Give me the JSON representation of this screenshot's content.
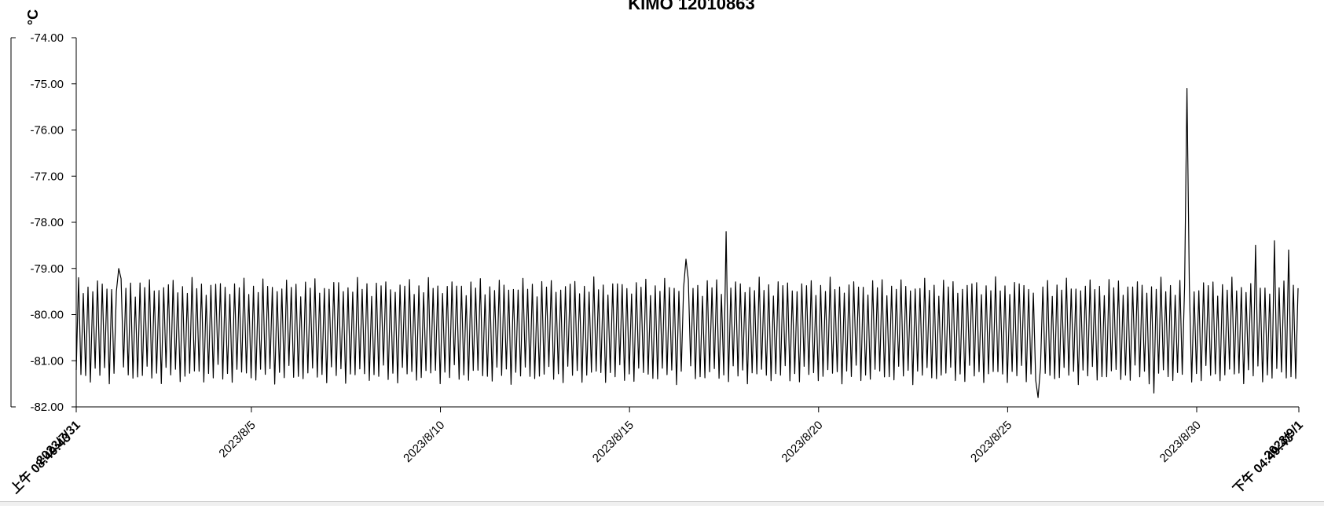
{
  "chart_data": {
    "type": "line",
    "title": "KIMO 12010863",
    "ylabel": "°C",
    "xlabel": "",
    "ylim": [
      -82.0,
      -74.0
    ],
    "yticks": [
      "-74.00",
      "-75.00",
      "-76.00",
      "-77.00",
      "-78.00",
      "-79.00",
      "-80.00",
      "-81.00",
      "-82.00"
    ],
    "xlim": [
      "2023-07-31T08:49:43",
      "2023-09-01T16:49:43"
    ],
    "xticks": [
      {
        "label": "2023/7/31",
        "label2": "上午 08:49:43",
        "time": "2023-07-31T08:49:43",
        "bold": true
      },
      {
        "label": "2023/8/5",
        "time": "2023-08-05T00:00:00"
      },
      {
        "label": "2023/8/10",
        "time": "2023-08-10T00:00:00"
      },
      {
        "label": "2023/8/15",
        "time": "2023-08-15T00:00:00"
      },
      {
        "label": "2023/8/20",
        "time": "2023-08-20T00:00:00"
      },
      {
        "label": "2023/8/25",
        "time": "2023-08-25T00:00:00"
      },
      {
        "label": "2023/8/30",
        "time": "2023-08-30T00:00:00"
      },
      {
        "label": "2023/9/1",
        "label2": "下午 04:49:43",
        "time": "2023-09-01T16:49:43",
        "bold": true
      }
    ],
    "grid": false,
    "legend": "none",
    "series": [
      {
        "color": "#000000",
        "oscillation": {
          "low": -81.3,
          "high": -79.4,
          "period_hours": 3.0
        },
        "spikes": [
          {
            "time": "2023-08-01T12:00:00",
            "value": -79.0
          },
          {
            "time": "2023-08-16T12:00:00",
            "value": -78.8
          },
          {
            "time": "2023-08-17T13:30:00",
            "value": -78.2
          },
          {
            "time": "2023-08-29T18:00:00",
            "value": -75.1
          },
          {
            "time": "2023-08-25T19:00:00",
            "value": -81.8
          },
          {
            "time": "2023-08-28T21:00:00",
            "value": -81.7
          },
          {
            "time": "2023-08-31T13:00:00",
            "value": -78.5
          },
          {
            "time": "2023-09-01T02:00:00",
            "value": -78.4
          },
          {
            "time": "2023-09-01T11:00:00",
            "value": -78.6
          }
        ]
      }
    ]
  }
}
